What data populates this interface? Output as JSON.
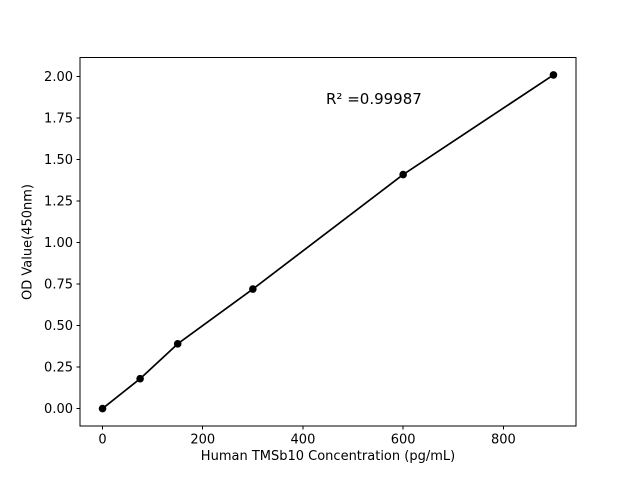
{
  "figure": {
    "background": "#ffffff"
  },
  "chart_data": {
    "type": "line",
    "series_name": "standard-curve",
    "x": [
      0,
      75,
      150,
      300,
      600,
      900
    ],
    "y": [
      0.0,
      0.18,
      0.39,
      0.72,
      1.41,
      2.01
    ],
    "title": "",
    "xlabel": "Human TMSb10 Concentration (pg/mL)",
    "ylabel": "OD Value(450nm)",
    "annotation": {
      "text": "R² =0.99987"
    },
    "xlim": [
      -45,
      945
    ],
    "ylim": [
      -0.105,
      2.115
    ],
    "xticks": [
      0,
      200,
      400,
      600,
      800
    ],
    "xtick_labels": [
      "0",
      "200",
      "400",
      "600",
      "800"
    ],
    "yticks": [
      0.0,
      0.25,
      0.5,
      0.75,
      1.0,
      1.25,
      1.5,
      1.75,
      2.0
    ],
    "ytick_labels": [
      "0.00",
      "0.25",
      "0.50",
      "0.75",
      "1.00",
      "1.25",
      "1.50",
      "1.75",
      "2.00"
    ],
    "grid": false,
    "legend": false,
    "line_color": "#000000",
    "marker": "circle",
    "marker_color": "#000000",
    "axis_color": "#000000",
    "text_color": "#000000"
  }
}
